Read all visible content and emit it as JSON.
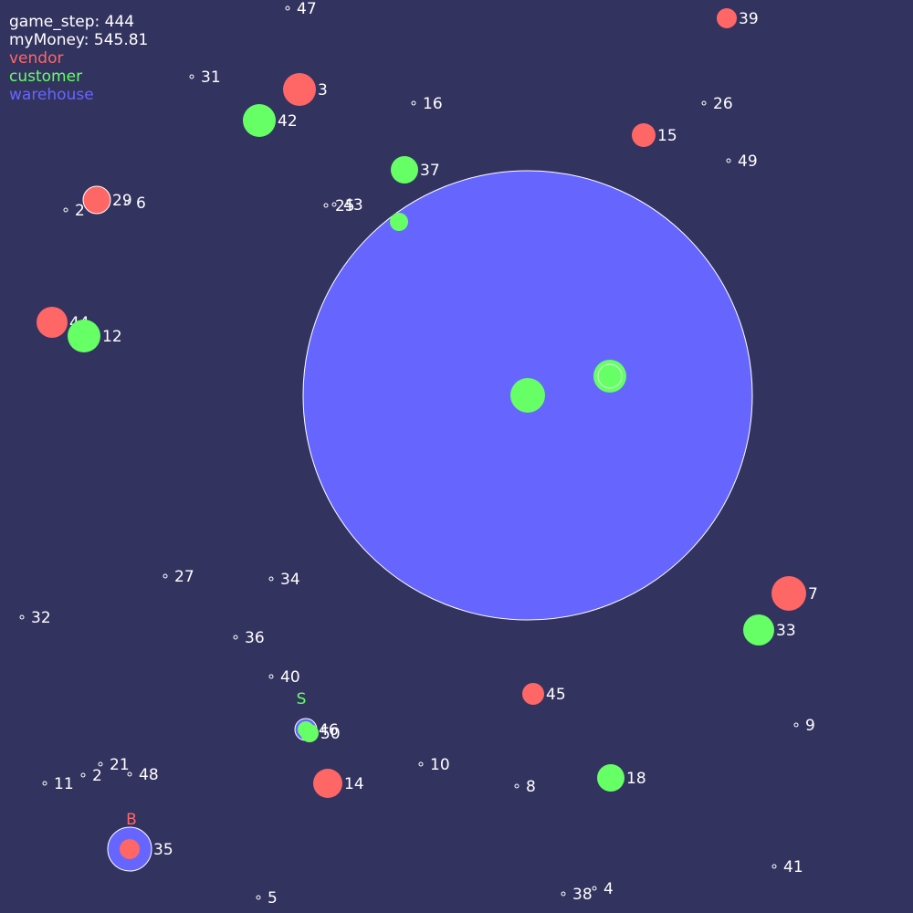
{
  "hud": {
    "game_step_text": "game_step: 444",
    "money_text": "myMoney: 545.81",
    "legend": [
      {
        "label": "vendor",
        "color": "#ff6666"
      },
      {
        "label": "customer",
        "color": "#66ff66"
      },
      {
        "label": "warehouse",
        "color": "#6666ff"
      }
    ]
  },
  "colors": {
    "background": "#333360",
    "vendor": "#ff6666",
    "customer": "#66ff66",
    "warehouse": "#6666ff",
    "node": "#ffffff",
    "label": "#ffffff"
  },
  "markers": [
    {
      "text": "S",
      "color": "#66ff66"
    },
    {
      "text": "B",
      "color": "#ff6666"
    }
  ],
  "nodes": [
    {
      "id": "47",
      "type": "point"
    },
    {
      "id": "39",
      "type": "vendor"
    },
    {
      "id": "31",
      "type": "point"
    },
    {
      "id": "3",
      "type": "vendor"
    },
    {
      "id": "42",
      "type": "customer"
    },
    {
      "id": "16",
      "type": "point"
    },
    {
      "id": "26",
      "type": "point"
    },
    {
      "id": "15",
      "type": "vendor"
    },
    {
      "id": "49",
      "type": "point"
    },
    {
      "id": "37",
      "type": "customer"
    },
    {
      "id": "29",
      "type": "vendor"
    },
    {
      "id": "6",
      "type": "point"
    },
    {
      "id": "2",
      "type": "point"
    },
    {
      "id": "25",
      "type": "point"
    },
    {
      "id": "43",
      "type": "point"
    },
    {
      "id": "44",
      "type": "vendor"
    },
    {
      "id": "12",
      "type": "customer"
    },
    {
      "id": "27",
      "type": "point"
    },
    {
      "id": "34",
      "type": "point"
    },
    {
      "id": "7",
      "type": "vendor"
    },
    {
      "id": "33",
      "type": "customer"
    },
    {
      "id": "32",
      "type": "point"
    },
    {
      "id": "36",
      "type": "point"
    },
    {
      "id": "40",
      "type": "point"
    },
    {
      "id": "45",
      "type": "vendor"
    },
    {
      "id": "9",
      "type": "point"
    },
    {
      "id": "46",
      "type": "warehouse"
    },
    {
      "id": "50",
      "type": "customer"
    },
    {
      "id": "10",
      "type": "point"
    },
    {
      "id": "21",
      "type": "point"
    },
    {
      "id": "48",
      "type": "point"
    },
    {
      "id": "2",
      "type": "point"
    },
    {
      "id": "11",
      "type": "point"
    },
    {
      "id": "14",
      "type": "vendor"
    },
    {
      "id": "8",
      "type": "point"
    },
    {
      "id": "18",
      "type": "customer"
    },
    {
      "id": "35",
      "type": "warehouse"
    },
    {
      "id": "41",
      "type": "point"
    },
    {
      "id": "5",
      "type": "point"
    },
    {
      "id": "38",
      "type": "point"
    },
    {
      "id": "4",
      "type": "point"
    }
  ]
}
